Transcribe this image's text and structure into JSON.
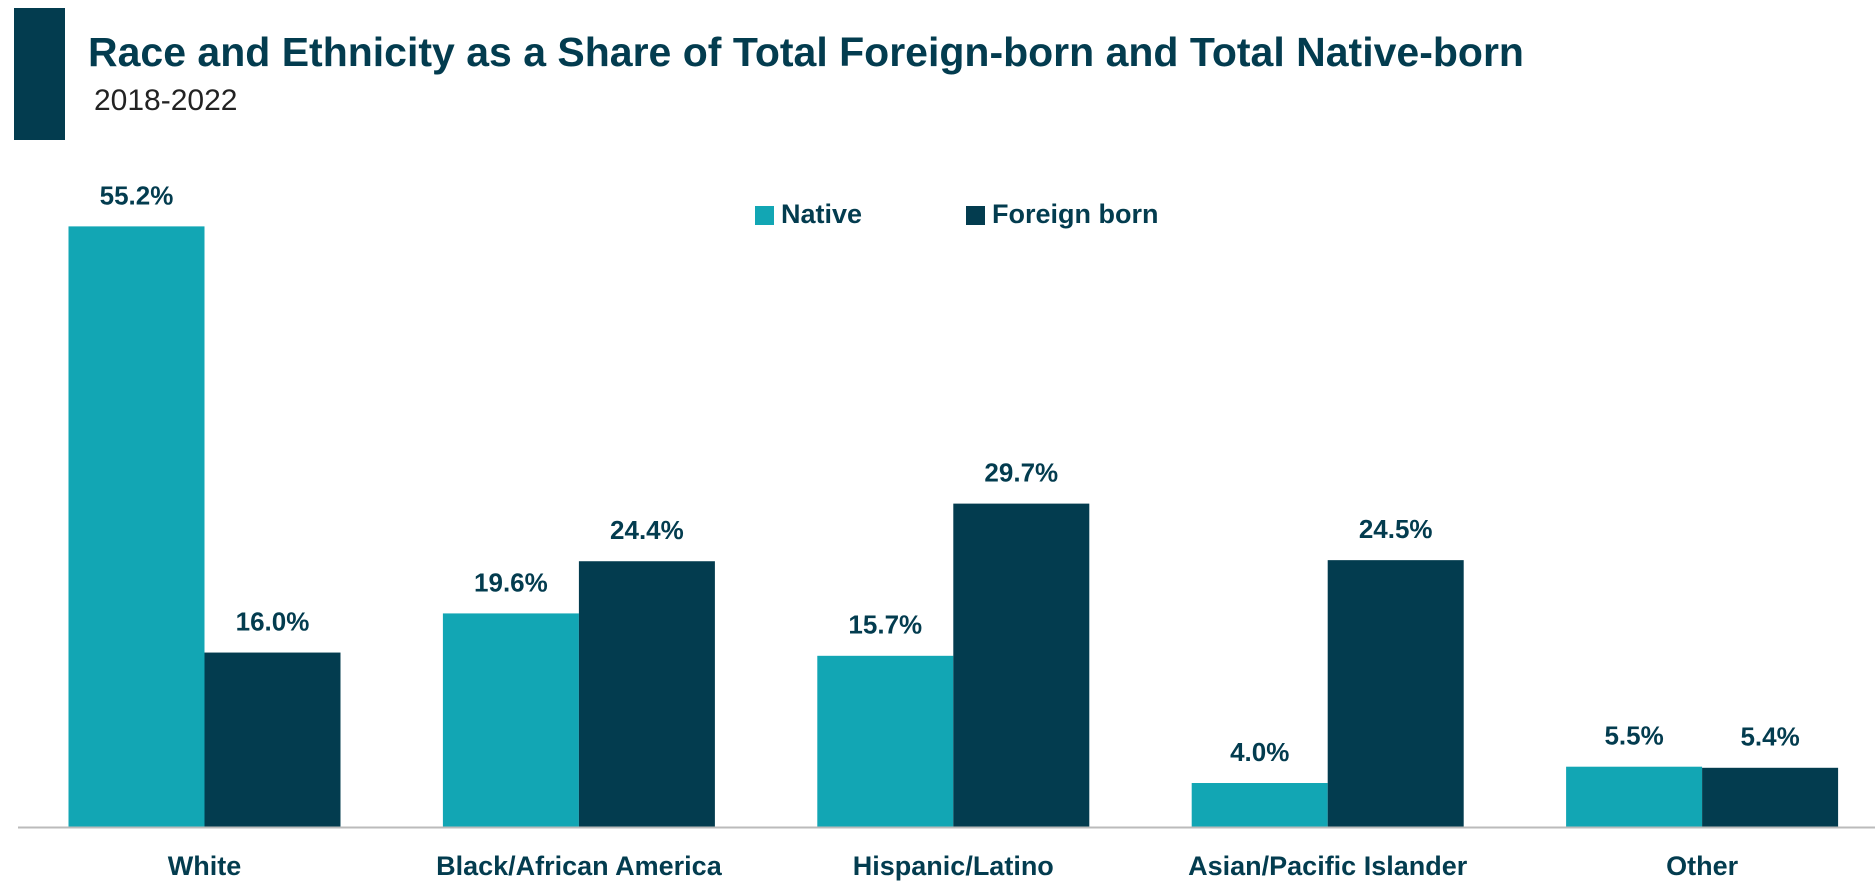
{
  "chart_data": {
    "type": "bar",
    "title": "Race and Ethnicity as a Share of Total Foreign-born and Total Native-born",
    "subtitle": "2018-2022",
    "categories": [
      "White",
      "Black/African America",
      "Hispanic/Latino",
      "Asian/Pacific Islander",
      "Other"
    ],
    "series": [
      {
        "name": "Native",
        "color": "#12a6b4",
        "values": [
          55.2,
          19.6,
          15.7,
          4.0,
          5.5
        ],
        "value_labels": [
          "55.2%",
          "19.6%",
          "15.7%",
          "4.0%",
          "5.5%"
        ]
      },
      {
        "name": "Foreign born",
        "color": "#033c4f",
        "values": [
          16.0,
          24.4,
          29.7,
          24.5,
          5.4
        ],
        "value_labels": [
          "16.0%",
          "24.4%",
          "29.7%",
          "24.5%",
          "5.4%"
        ]
      }
    ]
  }
}
